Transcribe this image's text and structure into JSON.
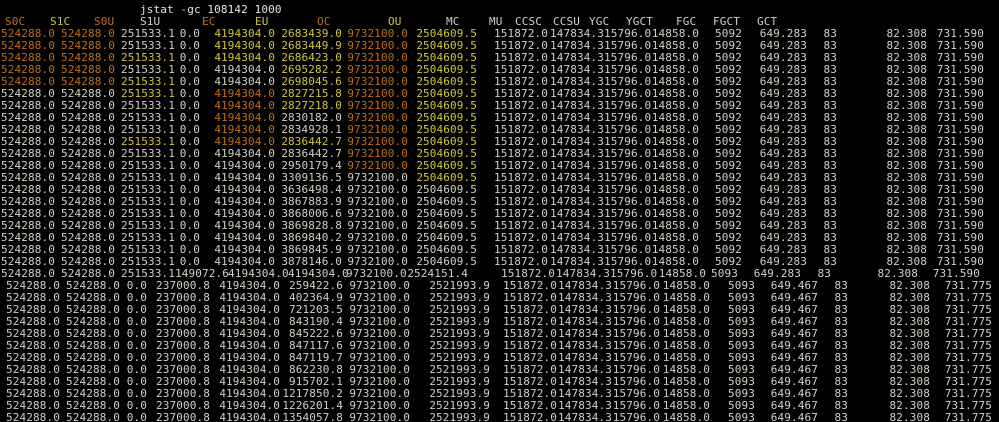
{
  "terminal": {
    "command_line": "jstat -gc 108142 1000",
    "palette": {
      "background": "#010101",
      "white": "#d1d0c8",
      "orange": "#bd6d1f",
      "yellow": "#cfc63c"
    },
    "columns": [
      "S0C",
      "S1C",
      "S0U",
      "S1U",
      "EC",
      "EU",
      "OC",
      "OU",
      "MC",
      "MU",
      "CCSC",
      "CCSU",
      "YGC",
      "YGCT",
      "FGC",
      "FGCT",
      "GCT"
    ],
    "header_colors": "oyowoyoywwwwwwwww",
    "rows": [
      {
        "variant": "A",
        "colors": "oowwyyoy",
        "cells": [
          "524288.0",
          "524288.0",
          "251533.1",
          "0.0",
          "4194304.0",
          "2683439.0",
          "9732100.0",
          "2504609.5",
          "151872.0",
          "147834.3",
          "15796.0",
          "14858.0",
          "5092",
          "649.283",
          "83",
          "82.308",
          "731.590"
        ]
      },
      {
        "variant": "A",
        "colors": "oowwyyoy",
        "cells": [
          "524288.0",
          "524288.0",
          "251533.1",
          "0.0",
          "4194304.0",
          "2683449.9",
          "9732100.0",
          "2504609.5",
          "151872.0",
          "147834.3",
          "15796.0",
          "14858.0",
          "5092",
          "649.283",
          "83",
          "82.308",
          "731.590"
        ]
      },
      {
        "variant": "A",
        "colors": "ooywyyoy",
        "cells": [
          "524288.0",
          "524288.0",
          "251533.1",
          "0.0",
          "4194304.0",
          "2686423.0",
          "9732100.0",
          "2504609.5",
          "151872.0",
          "147834.3",
          "15796.0",
          "14858.0",
          "5092",
          "649.283",
          "83",
          "82.308",
          "731.590"
        ]
      },
      {
        "variant": "A",
        "colors": "oowwwyoy",
        "cells": [
          "524288.0",
          "524288.0",
          "251533.1",
          "0.0",
          "4194304.0",
          "2695282.2",
          "9732100.0",
          "2504609.5",
          "151872.0",
          "147834.3",
          "15796.0",
          "14858.0",
          "5092",
          "649.283",
          "83",
          "82.308",
          "731.590"
        ]
      },
      {
        "variant": "A",
        "colors": "ooywwyoy",
        "cells": [
          "524288.0",
          "524288.0",
          "251533.1",
          "0.0",
          "4194304.0",
          "2698045.6",
          "9732100.0",
          "2504609.5",
          "151872.0",
          "147834.3",
          "15796.0",
          "14858.0",
          "5092",
          "649.283",
          "83",
          "82.308",
          "731.590"
        ]
      },
      {
        "variant": "A",
        "colors": "wwywoyoy",
        "cells": [
          "524288.0",
          "524288.0",
          "251533.1",
          "0.0",
          "4194304.0",
          "2827215.8",
          "9732100.0",
          "2504609.5",
          "151872.0",
          "147834.3",
          "15796.0",
          "14858.0",
          "5092",
          "649.283",
          "83",
          "82.308",
          "731.590"
        ]
      },
      {
        "variant": "A",
        "colors": "wwwwoyoy",
        "cells": [
          "524288.0",
          "524288.0",
          "251533.1",
          "0.0",
          "4194304.0",
          "2827218.0",
          "9732100.0",
          "2504609.5",
          "151872.0",
          "147834.3",
          "15796.0",
          "14858.0",
          "5092",
          "649.283",
          "83",
          "82.308",
          "731.590"
        ]
      },
      {
        "variant": "A",
        "colors": "wwwwowoy",
        "cells": [
          "524288.0",
          "524288.0",
          "251533.1",
          "0.0",
          "4194304.0",
          "2830182.0",
          "9732100.0",
          "2504609.5",
          "151872.0",
          "147834.3",
          "15796.0",
          "14858.0",
          "5092",
          "649.283",
          "83",
          "82.308",
          "731.590"
        ]
      },
      {
        "variant": "A",
        "colors": "wwwwowoy",
        "cells": [
          "524288.0",
          "524288.0",
          "251533.1",
          "0.0",
          "4194304.0",
          "2834928.1",
          "9732100.0",
          "2504609.5",
          "151872.0",
          "147834.3",
          "15796.0",
          "14858.0",
          "5092",
          "649.283",
          "83",
          "82.308",
          "731.590"
        ]
      },
      {
        "variant": "A",
        "colors": "wwywoyoy",
        "cells": [
          "524288.0",
          "524288.0",
          "251533.1",
          "0.0",
          "4194304.0",
          "2836442.7",
          "9732100.0",
          "2504609.5",
          "151872.0",
          "147834.3",
          "15796.0",
          "14858.0",
          "5092",
          "649.283",
          "83",
          "82.308",
          "731.590"
        ]
      },
      {
        "variant": "A",
        "colors": "wwwwwwoy",
        "cells": [
          "524288.0",
          "524288.0",
          "251533.1",
          "0.0",
          "4194304.0",
          "2836442.7",
          "9732100.0",
          "2504609.5",
          "151872.0",
          "147834.3",
          "15796.0",
          "14858.0",
          "5092",
          "649.283",
          "83",
          "82.308",
          "731.590"
        ]
      },
      {
        "variant": "A",
        "colors": "wwwwwwoy",
        "cells": [
          "524288.0",
          "524288.0",
          "251533.1",
          "0.0",
          "4194304.0",
          "2950179.4",
          "9732100.0",
          "2504609.5",
          "151872.0",
          "147834.3",
          "15796.0",
          "14858.0",
          "5092",
          "649.283",
          "83",
          "82.308",
          "731.590"
        ]
      },
      {
        "variant": "A",
        "colors": "wwwwwwwy",
        "cells": [
          "524288.0",
          "524288.0",
          "251533.1",
          "0.0",
          "4194304.0",
          "3309136.5",
          "9732100.0",
          "2504609.5",
          "151872.0",
          "147834.3",
          "15796.0",
          "14858.0",
          "5092",
          "649.283",
          "83",
          "82.308",
          "731.590"
        ]
      },
      {
        "variant": "A",
        "colors": "wwwwwwww",
        "cells": [
          "524288.0",
          "524288.0",
          "251533.1",
          "0.0",
          "4194304.0",
          "3636498.4",
          "9732100.0",
          "2504609.5",
          "151872.0",
          "147834.3",
          "15796.0",
          "14858.0",
          "5092",
          "649.283",
          "83",
          "82.308",
          "731.590"
        ]
      },
      {
        "variant": "A",
        "colors": "wwwwwwww",
        "cells": [
          "524288.0",
          "524288.0",
          "251533.1",
          "0.0",
          "4194304.0",
          "3867883.9",
          "9732100.0",
          "2504609.5",
          "151872.0",
          "147834.3",
          "15796.0",
          "14858.0",
          "5092",
          "649.283",
          "83",
          "82.308",
          "731.590"
        ]
      },
      {
        "variant": "A",
        "colors": "wwwwwwww",
        "cells": [
          "524288.0",
          "524288.0",
          "251533.1",
          "0.0",
          "4194304.0",
          "3868006.6",
          "9732100.0",
          "2504609.5",
          "151872.0",
          "147834.3",
          "15796.0",
          "14858.0",
          "5092",
          "649.283",
          "83",
          "82.308",
          "731.590"
        ]
      },
      {
        "variant": "A",
        "colors": "wwwwwwww",
        "cells": [
          "524288.0",
          "524288.0",
          "251533.1",
          "0.0",
          "4194304.0",
          "3869828.8",
          "9732100.0",
          "2504609.5",
          "151872.0",
          "147834.3",
          "15796.0",
          "14858.0",
          "5092",
          "649.283",
          "83",
          "82.308",
          "731.590"
        ]
      },
      {
        "variant": "A",
        "colors": "wwwwwwww",
        "cells": [
          "524288.0",
          "524288.0",
          "251533.1",
          "0.0",
          "4194304.0",
          "3869840.2",
          "9732100.0",
          "2504609.5",
          "151872.0",
          "147834.3",
          "15796.0",
          "14858.0",
          "5092",
          "649.283",
          "83",
          "82.308",
          "731.590"
        ]
      },
      {
        "variant": "A",
        "colors": "wwwwwwww",
        "cells": [
          "524288.0",
          "524288.0",
          "251533.1",
          "0.0",
          "4194304.0",
          "3869845.9",
          "9732100.0",
          "2504609.5",
          "151872.0",
          "147834.3",
          "15796.0",
          "14858.0",
          "5092",
          "649.283",
          "83",
          "82.308",
          "731.590"
        ]
      },
      {
        "variant": "A",
        "colors": "wwwwwwww",
        "cells": [
          "524288.0",
          "524288.0",
          "251533.1",
          "0.0",
          "4194304.0",
          "3878146.0",
          "9732100.0",
          "2504609.5",
          "151872.0",
          "147834.3",
          "15796.0",
          "14858.0",
          "5092",
          "649.283",
          "83",
          "82.308",
          "731.590"
        ]
      },
      {
        "variant": "B",
        "colors": "wwwwwwww",
        "cells": [
          "524288.0",
          "524288.0",
          "251533.1",
          "149072.6",
          "4194304.0",
          "4194304.0",
          "9732100.0",
          "2524151.4",
          "151872.0",
          "147834.3",
          "15796.0",
          "14858.0",
          "5093",
          "649.283",
          "83",
          "82.308",
          "731.590"
        ]
      },
      {
        "variant": "C",
        "colors": "wwwwwwww",
        "cells": [
          "524288.0",
          "524288.0",
          "0.0",
          "237000.8",
          "4194304.0",
          "259422.6",
          "9732100.0",
          "2521993.9",
          "151872.0",
          "147834.3",
          "15796.0",
          "14858.0",
          "5093",
          "649.467",
          "83",
          "82.308",
          "731.775"
        ]
      },
      {
        "variant": "C",
        "colors": "wwwwwwww",
        "cells": [
          "524288.0",
          "524288.0",
          "0.0",
          "237000.8",
          "4194304.0",
          "402364.9",
          "9732100.0",
          "2521993.9",
          "151872.0",
          "147834.3",
          "15796.0",
          "14858.0",
          "5093",
          "649.467",
          "83",
          "82.308",
          "731.775"
        ]
      },
      {
        "variant": "C",
        "colors": "wwwwwwww",
        "cells": [
          "524288.0",
          "524288.0",
          "0.0",
          "237000.8",
          "4194304.0",
          "721203.5",
          "9732100.0",
          "2521993.9",
          "151872.0",
          "147834.3",
          "15796.0",
          "14858.0",
          "5093",
          "649.467",
          "83",
          "82.308",
          "731.775"
        ]
      },
      {
        "variant": "C",
        "colors": "wwwwwwww",
        "cells": [
          "524288.0",
          "524288.0",
          "0.0",
          "237000.8",
          "4194304.0",
          "843190.4",
          "9732100.0",
          "2521993.9",
          "151872.0",
          "147834.3",
          "15796.0",
          "14858.0",
          "5093",
          "649.467",
          "83",
          "82.308",
          "731.775"
        ]
      },
      {
        "variant": "C",
        "colors": "wwwwwwww",
        "cells": [
          "524288.0",
          "524288.0",
          "0.0",
          "237000.8",
          "4194304.0",
          "845222.6",
          "9732100.0",
          "2521993.9",
          "151872.0",
          "147834.3",
          "15796.0",
          "14858.0",
          "5093",
          "649.467",
          "83",
          "82.308",
          "731.775"
        ]
      },
      {
        "variant": "C",
        "colors": "wwwwwwww",
        "cells": [
          "524288.0",
          "524288.0",
          "0.0",
          "237000.8",
          "4194304.0",
          "847117.6",
          "9732100.0",
          "2521993.9",
          "151872.0",
          "147834.3",
          "15796.0",
          "14858.0",
          "5093",
          "649.467",
          "83",
          "82.308",
          "731.775"
        ]
      },
      {
        "variant": "C",
        "colors": "wwwwwwww",
        "cells": [
          "524288.0",
          "524288.0",
          "0.0",
          "237000.8",
          "4194304.0",
          "847119.7",
          "9732100.0",
          "2521993.9",
          "151872.0",
          "147834.3",
          "15796.0",
          "14858.0",
          "5093",
          "649.467",
          "83",
          "82.308",
          "731.775"
        ]
      },
      {
        "variant": "C",
        "colors": "wwwwwwww",
        "cells": [
          "524288.0",
          "524288.0",
          "0.0",
          "237000.8",
          "4194304.0",
          "862230.8",
          "9732100.0",
          "2521993.9",
          "151872.0",
          "147834.3",
          "15796.0",
          "14858.0",
          "5093",
          "649.467",
          "83",
          "82.308",
          "731.775"
        ]
      },
      {
        "variant": "C",
        "colors": "wwwwwwww",
        "cells": [
          "524288.0",
          "524288.0",
          "0.0",
          "237000.8",
          "4194304.0",
          "915702.1",
          "9732100.0",
          "2521993.9",
          "151872.0",
          "147834.3",
          "15796.0",
          "14858.0",
          "5093",
          "649.467",
          "83",
          "82.308",
          "731.775"
        ]
      },
      {
        "variant": "C",
        "colors": "wwwwwwww",
        "cells": [
          "524288.0",
          "524288.0",
          "0.0",
          "237000.8",
          "4194304.0",
          "1217850.2",
          "9732100.0",
          "2521993.9",
          "151872.0",
          "147834.3",
          "15796.0",
          "14858.0",
          "5093",
          "649.467",
          "83",
          "82.308",
          "731.775"
        ]
      },
      {
        "variant": "C",
        "colors": "wwwwwwww",
        "cells": [
          "524288.0",
          "524288.0",
          "0.0",
          "237000.8",
          "4194304.0",
          "1226201.4",
          "9732100.0",
          "2521993.9",
          "151872.0",
          "147834.3",
          "15796.0",
          "14858.0",
          "5093",
          "649.467",
          "83",
          "82.308",
          "731.775"
        ]
      },
      {
        "variant": "C",
        "colors": "wwwwwwww",
        "cells": [
          "524288.0",
          "524288.0",
          "0.0",
          "237000.8",
          "4194304.0",
          "1354057.8",
          "9732100.0",
          "2521993.9",
          "151872.0",
          "147834.3",
          "15796.0",
          "14858.0",
          "5093",
          "649.467",
          "83",
          "82.308",
          "731.775"
        ]
      }
    ]
  }
}
